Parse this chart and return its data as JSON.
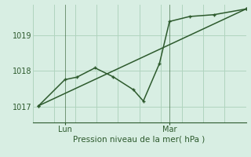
{
  "title": "",
  "xlabel": "Pression niveau de la mer( hPa )",
  "ylabel": "",
  "background_color": "#d8eee3",
  "grid_color": "#b0d4be",
  "line_color": "#2d5a2d",
  "ylim": [
    1016.55,
    1019.85
  ],
  "xlim": [
    -0.3,
    10.3
  ],
  "yticks": [
    1017,
    1018,
    1019
  ],
  "ytick_labels": [
    "1017",
    "1018",
    "1019"
  ],
  "xtick_positions": [
    1.3,
    6.5
  ],
  "xtick_labels": [
    "Lun",
    "Mar"
  ],
  "data_line": [
    [
      0,
      1017.02
    ],
    [
      1.3,
      1017.75
    ],
    [
      1.9,
      1017.82
    ],
    [
      2.8,
      1018.08
    ],
    [
      3.7,
      1017.83
    ],
    [
      4.7,
      1017.47
    ],
    [
      5.2,
      1017.15
    ],
    [
      6.0,
      1018.2
    ],
    [
      6.5,
      1019.38
    ],
    [
      7.5,
      1019.52
    ],
    [
      8.7,
      1019.57
    ],
    [
      10.3,
      1019.73
    ]
  ],
  "trend_line": [
    [
      0,
      1017.02
    ],
    [
      10.3,
      1019.73
    ]
  ],
  "vlines": [
    1.3,
    6.5
  ],
  "marker_size": 3.0,
  "line_width": 1.1
}
